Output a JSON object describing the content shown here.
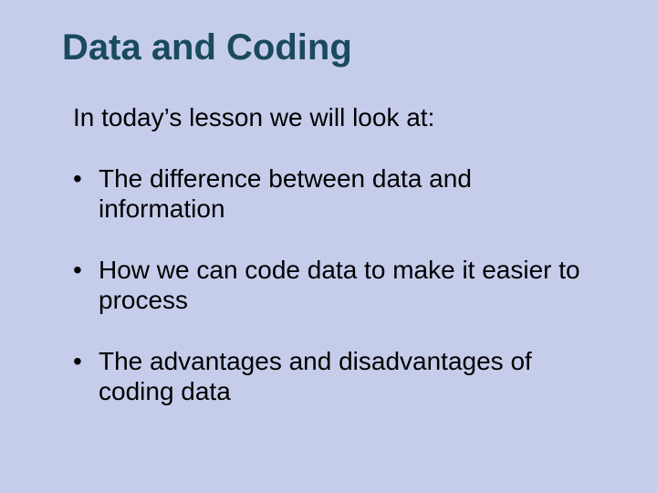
{
  "slide": {
    "background_color": "#c6cdeb",
    "title": {
      "text": "Data and Coding",
      "color": "#1a4a5e",
      "font_size_pt": 40,
      "font_weight": "bold"
    },
    "intro": {
      "text": "In today’s lesson we will look at:",
      "color": "#000000",
      "font_size_pt": 28
    },
    "bullets": {
      "color": "#000000",
      "font_size_pt": 28,
      "marker": "•",
      "items": [
        "The difference between data and information",
        "How we can code data to make it easier to process",
        "The advantages and disadvantages of coding data"
      ]
    }
  }
}
